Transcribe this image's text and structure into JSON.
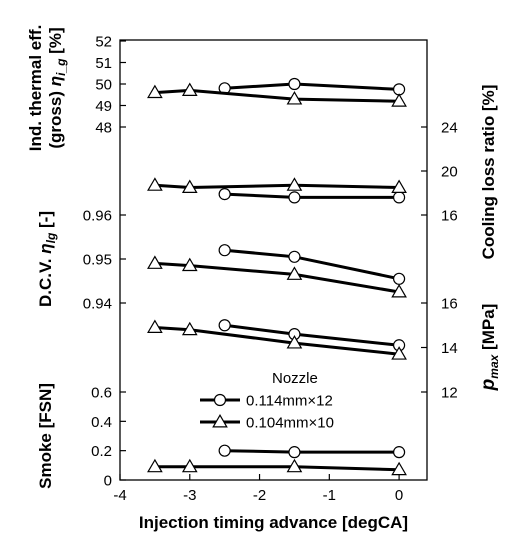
{
  "chart_data": {
    "type": "line",
    "xlabel": "Injection timing advance [degCA]",
    "xlim": [
      -4,
      0.4
    ],
    "xticks": [
      "-4",
      "-3",
      "-2",
      "-1",
      "0"
    ],
    "legend": {
      "title": "Nozzle",
      "entries": [
        {
          "marker": "circle",
          "label": "0.114mm×12"
        },
        {
          "marker": "triangle",
          "label": "0.104mm×10"
        }
      ]
    },
    "panels": [
      {
        "id": "thermal-efficiency",
        "side": "left",
        "ylabel_lines": [
          "Ind. thermal eff.",
          "(gross)"
        ],
        "ylabel_symbol": "η",
        "ylabel_sub": "i_g",
        "ylabel_unit": "[%]",
        "ylim": [
          48,
          52
        ],
        "yticks": [
          "48",
          "49",
          "50",
          "51",
          "52"
        ],
        "series": [
          {
            "marker": "circle",
            "x": [
              -2.5,
              -1.5,
              0
            ],
            "y": [
              49.8,
              50.0,
              49.75
            ]
          },
          {
            "marker": "triangle",
            "x": [
              -3.5,
              -3,
              -1.5,
              0
            ],
            "y": [
              49.6,
              49.7,
              49.3,
              49.2
            ]
          }
        ]
      },
      {
        "id": "cooling-loss",
        "side": "right",
        "ylabel": "Cooling loss ratio [%]",
        "ylim": [
          16,
          24
        ],
        "yticks": [
          "16",
          "20",
          "24"
        ],
        "series": [
          {
            "marker": "circle",
            "x": [
              -2.5,
              -1.5,
              0
            ],
            "y": [
              17.9,
              17.6,
              17.6
            ]
          },
          {
            "marker": "triangle",
            "x": [
              -3.5,
              -3,
              -1.5,
              0
            ],
            "y": [
              18.7,
              18.5,
              18.7,
              18.5
            ]
          }
        ]
      },
      {
        "id": "dcv",
        "side": "left",
        "ylabel": "D.C.V.",
        "ylabel_symbol": "η",
        "ylabel_sub": "lg",
        "ylabel_unit": "[-]",
        "ylim": [
          0.94,
          0.96
        ],
        "yticks": [
          "0.94",
          "0.95",
          "0.96"
        ],
        "series": [
          {
            "marker": "circle",
            "x": [
              -2.5,
              -1.5,
              0
            ],
            "y": [
              0.952,
              0.9505,
              0.9455
            ]
          },
          {
            "marker": "triangle",
            "x": [
              -3.5,
              -3,
              -1.5,
              0
            ],
            "y": [
              0.949,
              0.9485,
              0.9465,
              0.9425
            ]
          }
        ]
      },
      {
        "id": "pmax",
        "side": "right",
        "ylabel_symbol": "p",
        "ylabel_sub": "max",
        "ylabel_unit": "[MPa]",
        "ylim": [
          12,
          16
        ],
        "yticks": [
          "12",
          "14",
          "16"
        ],
        "series": [
          {
            "marker": "circle",
            "x": [
              -2.5,
              -1.5,
              0
            ],
            "y": [
              15.0,
              14.6,
              14.1
            ]
          },
          {
            "marker": "triangle",
            "x": [
              -3.5,
              -3,
              -1.5,
              0
            ],
            "y": [
              14.9,
              14.8,
              14.2,
              13.7
            ]
          }
        ]
      },
      {
        "id": "smoke",
        "side": "left",
        "ylabel": "Smoke [FSN]",
        "ylim": [
          0,
          0.6
        ],
        "yticks": [
          "0",
          "0.2",
          "0.4",
          "0.6"
        ],
        "series": [
          {
            "marker": "circle",
            "x": [
              -2.5,
              -1.5,
              0
            ],
            "y": [
              0.2,
              0.19,
              0.19
            ]
          },
          {
            "marker": "triangle",
            "x": [
              -3.5,
              -3,
              -1.5,
              0
            ],
            "y": [
              0.09,
              0.09,
              0.09,
              0.07
            ]
          }
        ]
      }
    ]
  }
}
